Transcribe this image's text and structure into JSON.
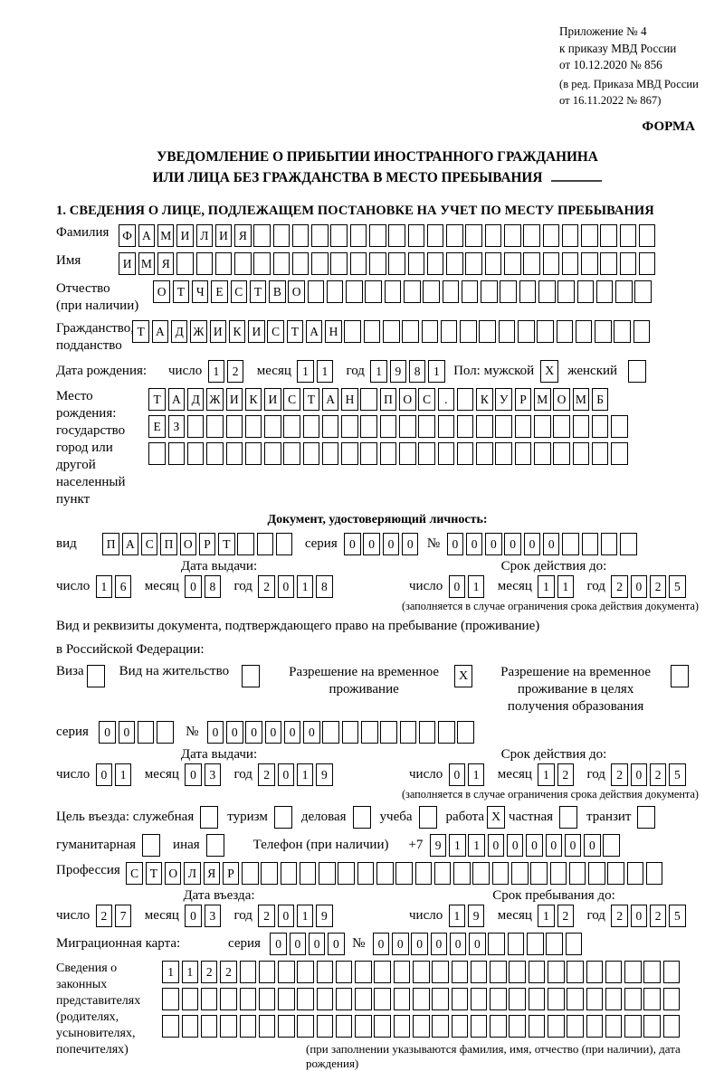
{
  "header": {
    "appendix": [
      "Приложение № 4",
      "к приказу МВД России",
      "от 10.12.2020 № 856"
    ],
    "edition": [
      "(в ред. Приказа МВД России",
      "от 16.11.2022 № 867)"
    ],
    "form_label": "ФОРМА"
  },
  "title": {
    "line1": "УВЕДОМЛЕНИЕ О ПРИБЫТИИ ИНОСТРАННОГО ГРАЖДАНИНА",
    "line2": "ИЛИ ЛИЦА БЕЗ ГРАЖДАНСТВА В МЕСТО ПРЕБЫВАНИЯ"
  },
  "section1": "1. СВЕДЕНИЯ О ЛИЦЕ, ПОДЛЕЖАЩЕМ ПОСТАНОВКЕ НА УЧЕТ ПО МЕСТУ ПРЕБЫВАНИЯ",
  "labels": {
    "day": "число",
    "month": "месяц",
    "year": "год",
    "series": "серия",
    "number": "№"
  },
  "surname": {
    "label": "Фамилия",
    "v": "ФАМИЛИЯ",
    "n": 28
  },
  "firstname": {
    "label": "Имя",
    "v": "ИМЯ",
    "n": 28
  },
  "patronymic": {
    "line1": "Отчество",
    "line2": "(при наличии)",
    "v": "ОТЧЕСТВО",
    "n": 26
  },
  "citizenship": {
    "line1": "Гражданство,",
    "line2": "подданство",
    "v": "ТАДЖИКИСТАН",
    "n": 27
  },
  "birthdate": {
    "label": "Дата рождения:",
    "day": {
      "v": "12",
      "n": 2
    },
    "month": {
      "v": "11",
      "n": 2
    },
    "year": {
      "v": "1981",
      "n": 4
    },
    "gender_label": "Пол: мужской",
    "male": true,
    "female_label": "женский",
    "female": false
  },
  "birthplace": {
    "line1": "Место рождения:",
    "line2": "государство",
    "line3": "город или другой",
    "line4": "населенный пункт",
    "row1": {
      "v": "ТАДЖИКИСТАН ПОС. КУРМОМБ",
      "n": 24
    },
    "row2": {
      "v": "ЕЗ",
      "n": 25
    },
    "row3": {
      "v": "",
      "n": 25
    }
  },
  "identity": {
    "heading": "Документ, удостоверяющий личность:",
    "kind_label": "вид",
    "kind": {
      "v": "ПАСПОРТ",
      "n": 10
    },
    "series": {
      "v": "0000",
      "n": 4
    },
    "number": {
      "v": "000000",
      "n": 10
    },
    "issue_title": "Дата выдачи:",
    "issue_day": {
      "v": "16",
      "n": 2
    },
    "issue_month": {
      "v": "08",
      "n": 2
    },
    "issue_year": {
      "v": "2018",
      "n": 4
    },
    "valid_title": "Срок действия до:",
    "valid_day": {
      "v": "01",
      "n": 2
    },
    "valid_month": {
      "v": "11",
      "n": 2
    },
    "valid_year": {
      "v": "2025",
      "n": 4
    },
    "note": "(заполняется в случае ограничения срока действия документа)"
  },
  "residence": {
    "line1": "Вид и реквизиты документа, подтверждающего право на пребывание (проживание)",
    "line2": "в Российской Федерации:",
    "visa_label": "Виза",
    "visa": false,
    "permit_label": "Вид на жительство",
    "permit": false,
    "rvp_line1": "Разрешение на временное",
    "rvp_line2": "проживание",
    "rvp": true,
    "edu_line1": "Разрешение на временное",
    "edu_line2": "проживание в целях",
    "edu_line3": "получения образования",
    "edu": false,
    "series": {
      "v": "00",
      "n": 4
    },
    "number": {
      "v": "000000",
      "n": 14
    },
    "issue_title": "Дата выдачи:",
    "issue_day": {
      "v": "01",
      "n": 2
    },
    "issue_month": {
      "v": "03",
      "n": 2
    },
    "issue_year": {
      "v": "2019",
      "n": 4
    },
    "valid_title": "Срок действия до:",
    "valid_day": {
      "v": "01",
      "n": 2
    },
    "valid_month": {
      "v": "12",
      "n": 2
    },
    "valid_year": {
      "v": "2025",
      "n": 4
    },
    "note": "(заполняется в случае ограничения срока действия документа)"
  },
  "purpose": {
    "label": "Цель въезда: служебная",
    "official": false,
    "tourism_label": "туризм",
    "tourism": false,
    "business_label": "деловая",
    "business": false,
    "study_label": "учеба",
    "study": false,
    "work_label": "работа",
    "work": true,
    "private_label": "частная",
    "private": false,
    "transit_label": "транзит",
    "transit": false,
    "humanitarian_label": "гуманитарная",
    "humanitarian": false,
    "other_label": "иная",
    "other": false,
    "phone_label": "Телефон (при наличии)",
    "phone_prefix": "+7",
    "phone": {
      "v": "911000000",
      "n": 10
    }
  },
  "profession": {
    "label": "Профессия",
    "v": "СТОЛЯР",
    "n": 28
  },
  "entry": {
    "title": "Дата въезда:",
    "day": {
      "v": "27",
      "n": 2
    },
    "month": {
      "v": "03",
      "n": 2
    },
    "year": {
      "v": "2019",
      "n": 4
    },
    "stay_title": "Срок пребывания до:",
    "stay_day": {
      "v": "19",
      "n": 2
    },
    "stay_month": {
      "v": "12",
      "n": 2
    },
    "stay_year": {
      "v": "2025",
      "n": 4
    }
  },
  "migration": {
    "label": "Миграционная карта:",
    "series": {
      "v": "0000",
      "n": 4
    },
    "number": {
      "v": "000000",
      "n": 11
    }
  },
  "representatives": {
    "line1": "Сведения о",
    "line2": "законных",
    "line3": "представителях",
    "line4": "(родителях,",
    "line5": "усыновителях,",
    "line6": "попечителях)",
    "row1": {
      "v": "1122",
      "n": 27
    },
    "row2": {
      "v": "",
      "n": 27
    },
    "row3": {
      "v": "",
      "n": 27
    },
    "note": "(при заполнении указываются фамилия, имя, отчество (при наличии), дата рождения)"
  }
}
